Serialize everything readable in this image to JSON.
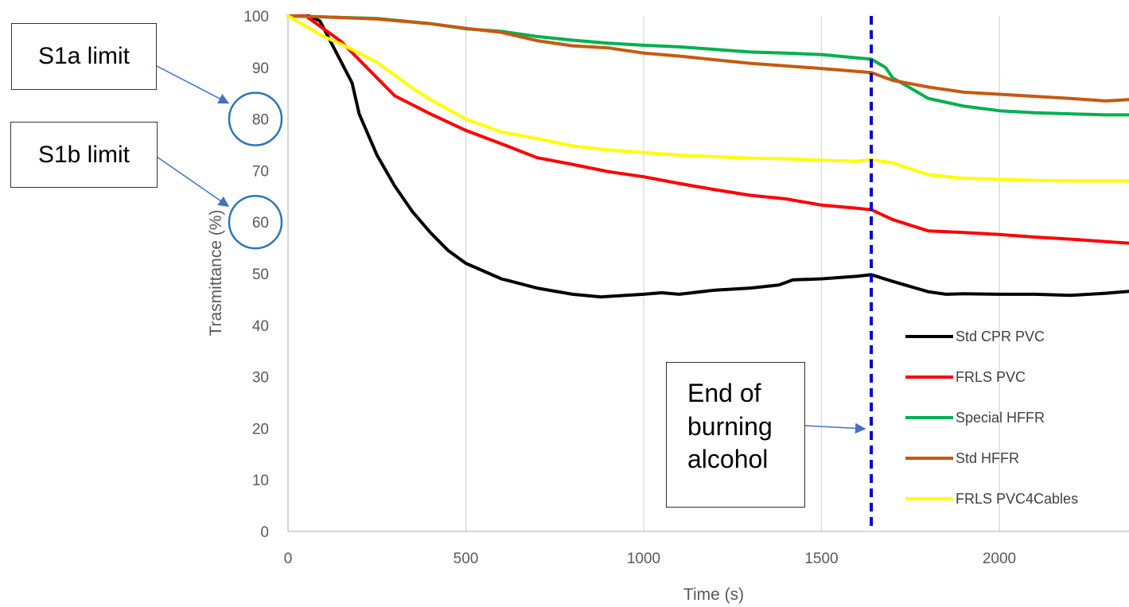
{
  "chart_data": {
    "type": "line",
    "title": "",
    "xlabel": "Time (s)",
    "ylabel": "Trasmittance (%)",
    "xlim": [
      0,
      2370
    ],
    "ylim": [
      0,
      100
    ],
    "x_ticks": [
      "0",
      "500",
      "1000",
      "1500",
      "2000"
    ],
    "y_ticks": [
      "0",
      "10",
      "20",
      "30",
      "40",
      "50",
      "60",
      "70",
      "80",
      "90",
      "100"
    ],
    "grid": "vertical",
    "legend_position": "bottom-right",
    "series": [
      {
        "name": "Std CPR PVC",
        "color": "#000000",
        "points": [
          [
            0,
            100
          ],
          [
            60,
            100
          ],
          [
            90,
            99
          ],
          [
            120,
            95
          ],
          [
            150,
            91
          ],
          [
            180,
            87
          ],
          [
            200,
            81
          ],
          [
            250,
            73
          ],
          [
            300,
            67
          ],
          [
            350,
            62
          ],
          [
            400,
            58
          ],
          [
            450,
            54.5
          ],
          [
            500,
            52
          ],
          [
            600,
            49
          ],
          [
            700,
            47.2
          ],
          [
            800,
            46
          ],
          [
            880,
            45.5
          ],
          [
            1000,
            46
          ],
          [
            1050,
            46.3
          ],
          [
            1100,
            46
          ],
          [
            1200,
            46.8
          ],
          [
            1300,
            47.2
          ],
          [
            1380,
            47.8
          ],
          [
            1420,
            48.8
          ],
          [
            1500,
            49
          ],
          [
            1600,
            49.5
          ],
          [
            1640,
            49.8
          ],
          [
            1700,
            48.5
          ],
          [
            1800,
            46.5
          ],
          [
            1850,
            46
          ],
          [
            1900,
            46.1
          ],
          [
            2000,
            46
          ],
          [
            2100,
            46
          ],
          [
            2200,
            45.8
          ],
          [
            2300,
            46.2
          ],
          [
            2370,
            46.6
          ]
        ]
      },
      {
        "name": "FRLS PVC",
        "color": "#ff0000",
        "points": [
          [
            0,
            100
          ],
          [
            50,
            100
          ],
          [
            100,
            97.5
          ],
          [
            150,
            95
          ],
          [
            200,
            91.5
          ],
          [
            250,
            88
          ],
          [
            300,
            84.5
          ],
          [
            400,
            81
          ],
          [
            500,
            77.8
          ],
          [
            600,
            75.2
          ],
          [
            700,
            72.5
          ],
          [
            800,
            71.2
          ],
          [
            900,
            69.8
          ],
          [
            1000,
            68.8
          ],
          [
            1100,
            67.5
          ],
          [
            1200,
            66.3
          ],
          [
            1300,
            65.2
          ],
          [
            1400,
            64.5
          ],
          [
            1500,
            63.3
          ],
          [
            1600,
            62.7
          ],
          [
            1640,
            62.4
          ],
          [
            1700,
            60.5
          ],
          [
            1800,
            58.3
          ],
          [
            1900,
            58
          ],
          [
            2000,
            57.6
          ],
          [
            2100,
            57.1
          ],
          [
            2200,
            56.7
          ],
          [
            2300,
            56.2
          ],
          [
            2370,
            55.9
          ]
        ]
      },
      {
        "name": "Special HFFR",
        "color": "#00b050",
        "points": [
          [
            0,
            100
          ],
          [
            100,
            99.8
          ],
          [
            250,
            99.5
          ],
          [
            400,
            98.5
          ],
          [
            500,
            97.5
          ],
          [
            600,
            97
          ],
          [
            700,
            96
          ],
          [
            800,
            95.3
          ],
          [
            900,
            94.7
          ],
          [
            1000,
            94.3
          ],
          [
            1100,
            94
          ],
          [
            1200,
            93.5
          ],
          [
            1300,
            93
          ],
          [
            1400,
            92.8
          ],
          [
            1500,
            92.5
          ],
          [
            1640,
            91.6
          ],
          [
            1680,
            90
          ],
          [
            1700,
            88
          ],
          [
            1750,
            86
          ],
          [
            1800,
            84
          ],
          [
            1900,
            82.5
          ],
          [
            2000,
            81.6
          ],
          [
            2100,
            81.2
          ],
          [
            2200,
            81
          ],
          [
            2300,
            80.8
          ],
          [
            2370,
            80.8
          ]
        ]
      },
      {
        "name": "Std HFFR",
        "color": "#c55a11",
        "points": [
          [
            0,
            100
          ],
          [
            100,
            99.8
          ],
          [
            250,
            99.4
          ],
          [
            400,
            98.5
          ],
          [
            500,
            97.6
          ],
          [
            600,
            96.8
          ],
          [
            700,
            95.2
          ],
          [
            800,
            94.2
          ],
          [
            900,
            93.8
          ],
          [
            1000,
            92.8
          ],
          [
            1100,
            92.2
          ],
          [
            1200,
            91.5
          ],
          [
            1300,
            90.8
          ],
          [
            1400,
            90.3
          ],
          [
            1500,
            89.8
          ],
          [
            1640,
            89
          ],
          [
            1700,
            87.5
          ],
          [
            1800,
            86.2
          ],
          [
            1900,
            85.2
          ],
          [
            2000,
            84.8
          ],
          [
            2100,
            84.4
          ],
          [
            2200,
            84
          ],
          [
            2300,
            83.5
          ],
          [
            2370,
            83.8
          ]
        ]
      },
      {
        "name": "FRLS PVC4Cables",
        "color": "#ffff00",
        "points": [
          [
            0,
            100
          ],
          [
            50,
            98
          ],
          [
            100,
            96
          ],
          [
            150,
            94.5
          ],
          [
            200,
            92.8
          ],
          [
            250,
            91
          ],
          [
            300,
            88.5
          ],
          [
            350,
            86
          ],
          [
            400,
            83.8
          ],
          [
            500,
            80
          ],
          [
            600,
            77.5
          ],
          [
            700,
            76.2
          ],
          [
            800,
            74.8
          ],
          [
            900,
            74
          ],
          [
            1000,
            73.5
          ],
          [
            1100,
            73
          ],
          [
            1200,
            72.7
          ],
          [
            1300,
            72.4
          ],
          [
            1400,
            72.3
          ],
          [
            1500,
            72
          ],
          [
            1600,
            71.8
          ],
          [
            1640,
            72.1
          ],
          [
            1700,
            71.5
          ],
          [
            1800,
            69.2
          ],
          [
            1900,
            68.5
          ],
          [
            2000,
            68.3
          ],
          [
            2100,
            68.1
          ],
          [
            2200,
            68
          ],
          [
            2300,
            68
          ],
          [
            2370,
            68
          ]
        ]
      }
    ],
    "event_marker": {
      "x": 1640,
      "color": "#0000cc"
    },
    "limit_markers": [
      {
        "label": "S1a limit",
        "y": 80
      },
      {
        "label": "S1b limit",
        "y": 60
      }
    ],
    "annotation": {
      "lines": [
        "End of",
        "burning",
        "alcohol"
      ]
    }
  }
}
